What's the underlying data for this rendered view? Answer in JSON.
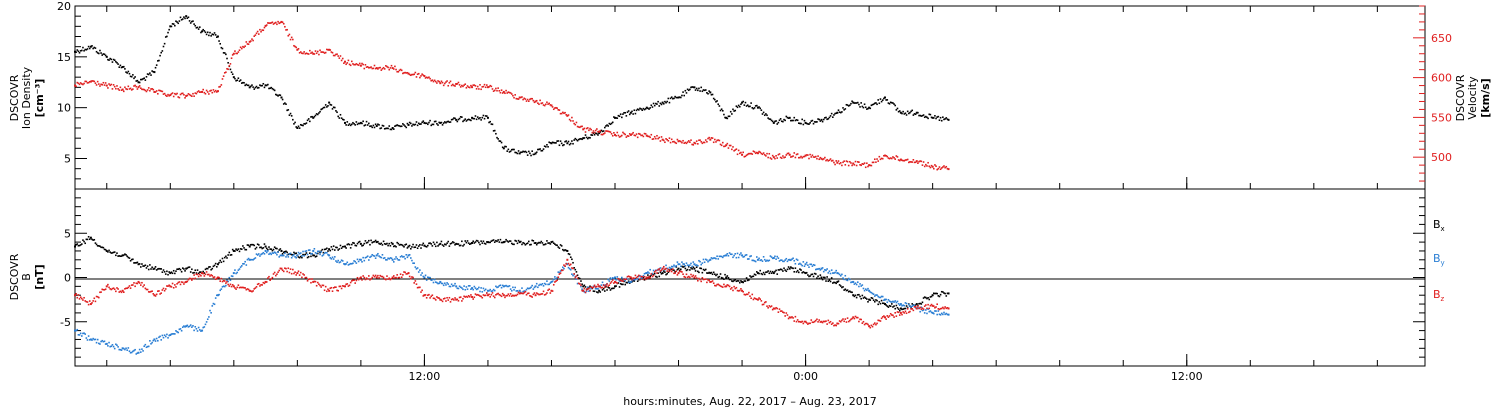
{
  "chart_data": [
    {
      "type": "scatter",
      "panel": "top",
      "ylabel_left": [
        "DSCOVR",
        "Ion Density",
        "[cm⁻³]"
      ],
      "ylabel_right": [
        "DSCOVR",
        "Velocity",
        "[km/s]"
      ],
      "ylim_left": [
        2,
        20
      ],
      "ylim_right": [
        460,
        690
      ],
      "yticks_left": [
        5,
        10,
        15,
        20
      ],
      "yticks_right": [
        500,
        550,
        600,
        650
      ],
      "grid": false,
      "series": [
        {
          "name": "Ion Density",
          "axis": "left",
          "color": "#000000",
          "x": [
            0,
            0.5,
            1,
            1.5,
            2,
            2.5,
            3,
            3.5,
            4,
            4.5,
            5,
            5.5,
            6,
            6.5,
            7,
            7.5,
            8,
            8.5,
            9,
            9.5,
            10,
            10.5,
            11,
            11.5,
            12,
            12.5,
            13,
            13.5,
            14,
            14.5,
            15,
            15.5,
            16,
            16.5,
            17,
            17.5,
            18,
            18.5,
            19,
            19.5,
            20,
            20.5,
            21,
            21.5,
            22,
            22.5,
            23,
            23.5,
            24,
            24.5,
            25,
            25.5,
            26,
            26.5,
            27,
            27.5
          ],
          "values": [
            15.5,
            16,
            15,
            14,
            12.5,
            13.5,
            18,
            19,
            17.5,
            17,
            13,
            12,
            12.2,
            11,
            8,
            9,
            10.5,
            8.5,
            8.5,
            8.2,
            8,
            8.3,
            8.5,
            8.5,
            8.8,
            9,
            9,
            6,
            5.5,
            5.5,
            6.5,
            6.5,
            7,
            7.5,
            9,
            9.5,
            10,
            10.5,
            11,
            12,
            11.5,
            9,
            10.5,
            10,
            8.5,
            9,
            8.5,
            8.8,
            9.5,
            10.5,
            10,
            11,
            9.5,
            9.5,
            9,
            8.8
          ]
        },
        {
          "name": "Velocity",
          "axis": "right",
          "color": "#e02020",
          "x": [
            0,
            0.5,
            1,
            1.5,
            2,
            2.5,
            3,
            3.5,
            4,
            4.5,
            5,
            5.5,
            6,
            6.5,
            7,
            7.5,
            8,
            8.5,
            9,
            9.5,
            10,
            10.5,
            11,
            11.5,
            12,
            12.5,
            13,
            13.5,
            14,
            14.5,
            15,
            15.5,
            16,
            16.5,
            17,
            17.5,
            18,
            18.5,
            19,
            19.5,
            20,
            20.5,
            21,
            21.5,
            22,
            22.5,
            23,
            23.5,
            24,
            24.5,
            25,
            25.5,
            26,
            26.5,
            27,
            27.5
          ],
          "values": [
            590,
            595,
            590,
            585,
            588,
            582,
            578,
            577,
            582,
            583,
            630,
            645,
            665,
            670,
            635,
            630,
            635,
            620,
            615,
            612,
            612,
            605,
            602,
            593,
            592,
            588,
            588,
            582,
            575,
            570,
            565,
            552,
            535,
            532,
            528,
            528,
            527,
            522,
            520,
            518,
            522,
            515,
            503,
            505,
            500,
            503,
            502,
            498,
            493,
            492,
            490,
            502,
            497,
            495,
            488,
            485
          ]
        }
      ]
    },
    {
      "type": "scatter",
      "panel": "bottom",
      "ylabel_left": [
        "DSCOVR",
        "B",
        "[nT]"
      ],
      "ylim": [
        -10,
        10
      ],
      "yticks": [
        -5,
        0,
        5
      ],
      "zero_line": true,
      "grid": false,
      "legend_placement": "right",
      "series": [
        {
          "name": "Bx",
          "legend_label": "B",
          "legend_sub": "x",
          "color": "#000000",
          "x": [
            0,
            0.5,
            1,
            1.5,
            2,
            2.5,
            3,
            3.5,
            4,
            4.5,
            5,
            5.5,
            6,
            6.5,
            7,
            7.5,
            8,
            8.5,
            9,
            9.5,
            10,
            10.5,
            11,
            11.5,
            12,
            12.5,
            13,
            13.5,
            14,
            14.5,
            15,
            15.5,
            16,
            16.5,
            17,
            17.5,
            18,
            18.5,
            19,
            19.5,
            20,
            20.5,
            21,
            21.5,
            22,
            22.5,
            23,
            23.5,
            24,
            24.5,
            25,
            25.5,
            26,
            26.5,
            27,
            27.5
          ],
          "values": [
            3.5,
            4.5,
            3,
            2.5,
            1.5,
            1,
            0.5,
            1,
            0.5,
            1.5,
            3,
            3.5,
            3.5,
            3,
            2.5,
            2.5,
            3.2,
            3.5,
            3.8,
            4,
            3.8,
            3.5,
            3.6,
            3.8,
            3.8,
            3.9,
            4,
            4,
            4,
            3.9,
            4,
            3,
            -1,
            -1.5,
            -1,
            -0.5,
            0,
            0.5,
            1,
            1,
            0.5,
            0,
            -0.5,
            0.5,
            0.5,
            1,
            0.5,
            0,
            -0.5,
            -2,
            -2.5,
            -3,
            -3.5,
            -3,
            -2,
            -1.8
          ]
        },
        {
          "name": "By",
          "legend_label": "B",
          "legend_sub": "y",
          "color": "#2b7fd4",
          "x": [
            0,
            0.5,
            1,
            1.5,
            2,
            2.5,
            3,
            3.5,
            4,
            4.5,
            5,
            5.5,
            6,
            6.5,
            7,
            7.5,
            8,
            8.5,
            9,
            9.5,
            10,
            10.5,
            11,
            11.5,
            12,
            12.5,
            13,
            13.5,
            14,
            14.5,
            15,
            15.5,
            16,
            16.5,
            17,
            17.5,
            18,
            18.5,
            19,
            19.5,
            20,
            20.5,
            21,
            21.5,
            22,
            22.5,
            23,
            23.5,
            24,
            24.5,
            25,
            25.5,
            26,
            26.5,
            27,
            27.5
          ],
          "values": [
            -6,
            -7,
            -7.5,
            -8,
            -8.5,
            -7,
            -6.5,
            -5.5,
            -6,
            -2,
            0.5,
            2,
            3,
            2.5,
            2.5,
            3,
            2.5,
            1.5,
            2,
            2.5,
            2,
            2.5,
            0,
            -0.5,
            -1,
            -1.2,
            -1.5,
            -1,
            -1.5,
            -1,
            -0.5,
            1.5,
            -1.5,
            -1,
            0,
            -0.5,
            0.5,
            1,
            1.5,
            1.5,
            2,
            2.5,
            2.5,
            2,
            2.2,
            2,
            1.5,
            1,
            0.5,
            -0.5,
            -1.5,
            -2.5,
            -3,
            -3.5,
            -4,
            -4.2
          ]
        },
        {
          "name": "Bz",
          "legend_label": "B",
          "legend_sub": "z",
          "color": "#e02020",
          "x": [
            0,
            0.5,
            1,
            1.5,
            2,
            2.5,
            3,
            3.5,
            4,
            4.5,
            5,
            5.5,
            6,
            6.5,
            7,
            7.5,
            8,
            8.5,
            9,
            9.5,
            10,
            10.5,
            11,
            11.5,
            12,
            12.5,
            13,
            13.5,
            14,
            14.5,
            15,
            15.5,
            16,
            16.5,
            17,
            17.5,
            18,
            18.5,
            19,
            19.5,
            20,
            20.5,
            21,
            21.5,
            22,
            22.5,
            23,
            23.5,
            24,
            24.5,
            25,
            25.5,
            26,
            26.5,
            27,
            27.5
          ],
          "values": [
            -2,
            -3,
            -1,
            -1.5,
            -0.5,
            -2,
            -1,
            -0.5,
            0.5,
            0,
            -1,
            -1.5,
            -0.5,
            1,
            0.5,
            -0.5,
            -1.5,
            -1,
            0,
            0,
            0,
            0.5,
            -2,
            -2.5,
            -2.5,
            -2.2,
            -2,
            -2,
            -1.8,
            -2,
            -1.5,
            2,
            -1.5,
            -1,
            -0.5,
            0,
            0,
            1,
            0.5,
            0,
            -0.5,
            -1,
            -1.5,
            -2.5,
            -3.5,
            -4.5,
            -5,
            -5,
            -5.2,
            -4.5,
            -5.5,
            -4.5,
            -4,
            -3.5,
            -3.2,
            -3.5
          ]
        }
      ]
    }
  ],
  "x_axis": {
    "range_hours": [
      0,
      42.5
    ],
    "tick_labels": [
      {
        "hour": 11,
        "label": "12:00"
      },
      {
        "hour": 23,
        "label": "0:00"
      },
      {
        "hour": 35,
        "label": "12:00"
      }
    ],
    "minor_tick_step_hours": 2,
    "xlabel": "hours:minutes, Aug. 22, 2017 – Aug. 23, 2017"
  },
  "colors": {
    "black": "#000000",
    "red": "#e02020",
    "blue": "#2b7fd4"
  }
}
